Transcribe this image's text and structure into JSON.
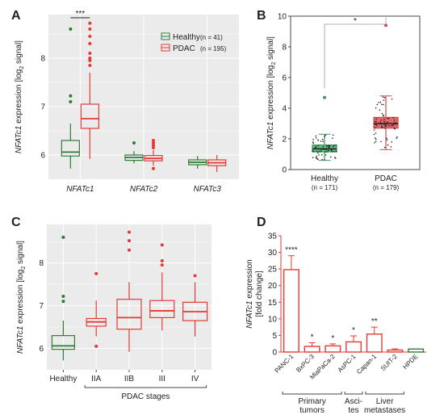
{
  "colors": {
    "healthy": "#2e7d32",
    "pdac": "#e53935",
    "panelBg": "#ebebeb",
    "grid": "#ffffff",
    "green_fill": "#5fbf85",
    "red_fill": "#e8666a"
  },
  "chart_data": [
    {
      "panel": "A",
      "type": "box",
      "ylabel_pre": "NFATc1",
      "ylabel_post": " expression [log",
      "ylabel_sub": "2",
      "ylabel_end": " signal]",
      "ylim": [
        5.5,
        8.9
      ],
      "yticks": [
        "6",
        "7",
        "8"
      ],
      "grid": true,
      "legend_position": "top-right",
      "categories": [
        "NFATc1",
        "NFATc2",
        "NFATc3"
      ],
      "significance": "***",
      "series": [
        {
          "name": "Healthy",
          "n_label": "(n = 41)",
          "boxes": [
            {
              "q1": 5.98,
              "median": 6.06,
              "q3": 6.3,
              "lo": 5.72,
              "hi": 6.65,
              "outliers": [
                7.1,
                7.22,
                8.6
              ]
            },
            {
              "q1": 5.89,
              "median": 5.95,
              "q3": 6.0,
              "lo": 5.83,
              "hi": 6.08,
              "outliers": [
                6.25
              ]
            },
            {
              "q1": 5.8,
              "median": 5.85,
              "q3": 5.9,
              "lo": 5.72,
              "hi": 5.98,
              "outliers": []
            }
          ]
        },
        {
          "name": "PDAC",
          "n_label": "(n = 195)",
          "boxes": [
            {
              "q1": 6.55,
              "median": 6.75,
              "q3": 7.05,
              "lo": 5.92,
              "hi": 7.7,
              "outliers": [
                7.85,
                7.95,
                8.0,
                8.1,
                8.3,
                8.45,
                8.6,
                8.72
              ]
            },
            {
              "q1": 5.88,
              "median": 5.93,
              "q3": 5.99,
              "lo": 5.78,
              "hi": 6.1,
              "outliers": [
                6.15,
                6.2,
                6.25,
                6.3,
                5.72
              ]
            },
            {
              "q1": 5.78,
              "median": 5.84,
              "q3": 5.9,
              "lo": 5.65,
              "hi": 6.0,
              "outliers": []
            }
          ]
        }
      ]
    },
    {
      "panel": "B",
      "type": "box",
      "ylabel_pre": "NFATc1",
      "ylabel_post": " expression [log",
      "ylabel_sub": "2",
      "ylabel_end": " signal]",
      "ylim": [
        0,
        10
      ],
      "yticks": [
        "0",
        "2",
        "4",
        "6",
        "8",
        "10"
      ],
      "significance": "*",
      "categories": [
        "Healthy",
        "PDAC"
      ],
      "n_labels": [
        "(n = 171)",
        "(n = 179)"
      ],
      "boxes": [
        {
          "q1": 1.15,
          "median": 1.35,
          "q3": 1.6,
          "lo": 0.6,
          "hi": 2.3,
          "outliers": [
            4.7
          ]
        },
        {
          "q1": 2.7,
          "median": 3.0,
          "q3": 3.4,
          "lo": 1.3,
          "hi": 4.8,
          "outliers": [
            9.4
          ]
        }
      ]
    },
    {
      "panel": "C",
      "type": "box",
      "ylabel_pre": "NFATc1",
      "ylabel_post": " expression [log",
      "ylabel_sub": "2",
      "ylabel_end": " signal]",
      "ylim": [
        5.5,
        8.9
      ],
      "yticks": [
        "6",
        "7",
        "8"
      ],
      "categories": [
        "Healthy",
        "IIA",
        "IIB",
        "III",
        "IV"
      ],
      "group_label": "PDAC stages",
      "boxes": [
        {
          "q1": 5.98,
          "median": 6.06,
          "q3": 6.3,
          "lo": 5.72,
          "hi": 6.65,
          "outliers": [
            7.1,
            7.22,
            8.6
          ]
        },
        {
          "q1": 6.52,
          "median": 6.62,
          "q3": 6.7,
          "lo": 6.28,
          "hi": 7.12,
          "outliers": [
            6.05,
            7.75
          ]
        },
        {
          "q1": 6.45,
          "median": 6.72,
          "q3": 7.15,
          "lo": 5.92,
          "hi": 7.55,
          "outliers": [
            8.3,
            8.52,
            8.72
          ]
        },
        {
          "q1": 6.72,
          "median": 6.88,
          "q3": 7.12,
          "lo": 6.42,
          "hi": 7.78,
          "outliers": [
            7.95,
            8.05,
            8.42
          ]
        },
        {
          "q1": 6.65,
          "median": 6.86,
          "q3": 7.08,
          "lo": 6.28,
          "hi": 7.55,
          "outliers": [
            7.7
          ]
        }
      ]
    },
    {
      "panel": "D",
      "type": "bar",
      "ylabel_pre": "NFATc1",
      "ylabel_post": " expression",
      "ylabel2": "[fold change]",
      "ylim": [
        0,
        35
      ],
      "yticks": [
        "0",
        "5",
        "10",
        "15",
        "20",
        "25",
        "30",
        "35"
      ],
      "categories": [
        "PANC-1",
        "BxPC-3",
        "MiaPaCa-2",
        "AsPC-1",
        "Capan-1",
        "SUIT-2",
        "HPDE"
      ],
      "values": [
        24.8,
        1.7,
        1.85,
        3.05,
        5.4,
        0.6,
        0.9
      ],
      "errors": [
        4.2,
        1.1,
        0.6,
        1.8,
        2.1,
        0.35,
        0
      ],
      "significance": [
        "****",
        "*",
        "*",
        "*",
        "**",
        "",
        ""
      ],
      "groups": [
        {
          "label": "Primary\ntumors",
          "from": 0,
          "to": 2
        },
        {
          "label": "Asci-\ntes",
          "from": 3,
          "to": 3
        },
        {
          "label": "Liver\nmetastases",
          "from": 4,
          "to": 5
        }
      ]
    }
  ],
  "panel_labels": {
    "a": "A",
    "b": "B",
    "c": "C",
    "d": "D"
  }
}
